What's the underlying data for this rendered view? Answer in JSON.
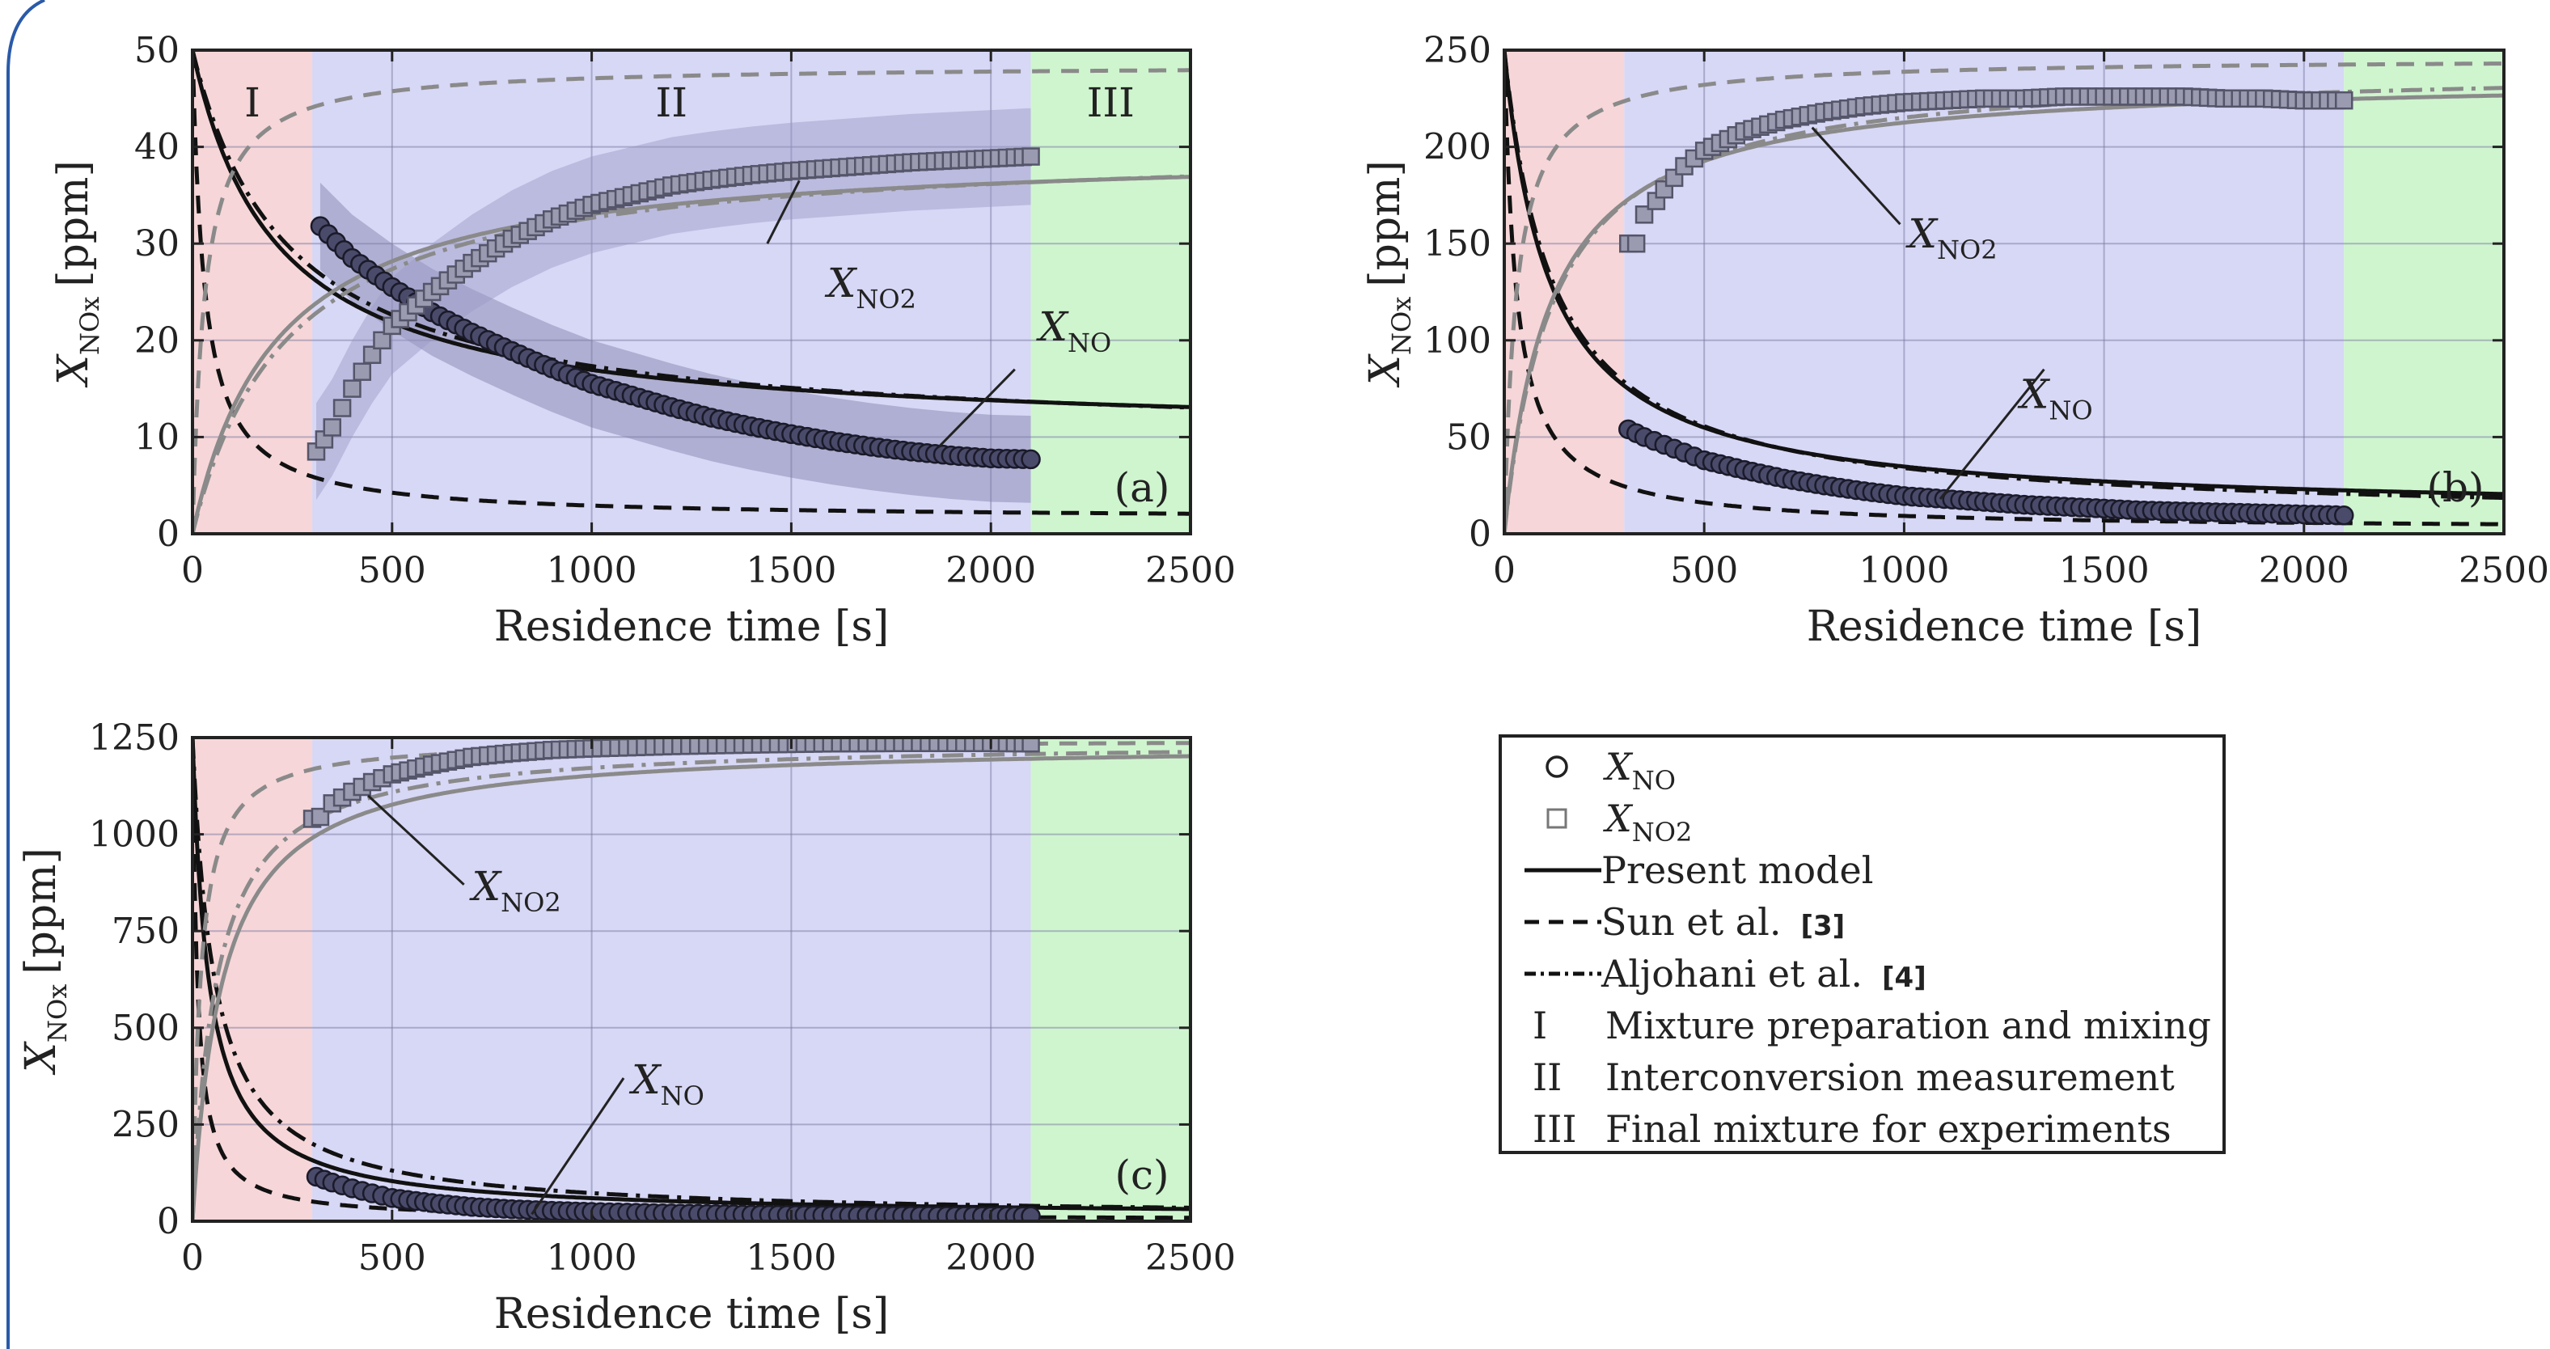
{
  "chart_data": [
    {
      "id": "a",
      "type": "scatter",
      "xlabel": "Residence time [s]",
      "ylabel": "X",
      "ylabel_sub": "NOx",
      "ylabel_unit": "[ppm]",
      "xlim": [
        0,
        2500
      ],
      "ylim": [
        0,
        50
      ],
      "x_ticks": [
        "0",
        "500",
        "1000",
        "1500",
        "2000",
        "2500"
      ],
      "y_ticks": [
        "0",
        "10",
        "20",
        "30",
        "40",
        "50"
      ],
      "panel_label": "(a)",
      "regions": [
        {
          "label": "I",
          "x": [
            0,
            300
          ],
          "color": "#f6d6d8"
        },
        {
          "label": "II",
          "x": [
            300,
            2100
          ],
          "color": "#d7d7f6"
        },
        {
          "label": "III",
          "x": [
            2100,
            2500
          ],
          "color": "#cff5cf"
        }
      ],
      "annotations": [
        {
          "base": "X",
          "sub": "NO2",
          "x": 1590,
          "y": 24.5
        },
        {
          "base": "X",
          "sub": "NO",
          "x": 2120,
          "y": 20
        }
      ],
      "initial_NO": 50,
      "series": [
        {
          "name": "X_NO",
          "marker": "circle",
          "points": [
            [
              320,
              31.8
            ],
            [
              400,
              28.5
            ],
            [
              500,
              25.5
            ],
            [
              600,
              22.9
            ],
            [
              700,
              20.8
            ],
            [
              800,
              18.9
            ],
            [
              900,
              17.1
            ],
            [
              1000,
              15.5
            ],
            [
              1100,
              14.3
            ],
            [
              1200,
              13.1
            ],
            [
              1300,
              12.0
            ],
            [
              1400,
              11.1
            ],
            [
              1500,
              10.3
            ],
            [
              1600,
              9.6
            ],
            [
              1700,
              9.0
            ],
            [
              1800,
              8.5
            ],
            [
              1900,
              8.1
            ],
            [
              2000,
              7.8
            ],
            [
              2100,
              7.7
            ]
          ],
          "band": 4.5
        },
        {
          "name": "X_NO2",
          "marker": "square",
          "points": [
            [
              310,
              8.5
            ],
            [
              350,
              11
            ],
            [
              400,
              15
            ],
            [
              450,
              18.5
            ],
            [
              500,
              21.5
            ],
            [
              600,
              25
            ],
            [
              700,
              28
            ],
            [
              800,
              30.5
            ],
            [
              900,
              32.5
            ],
            [
              1000,
              34
            ],
            [
              1100,
              35
            ],
            [
              1200,
              36
            ],
            [
              1300,
              36.6
            ],
            [
              1400,
              37.1
            ],
            [
              1500,
              37.5
            ],
            [
              1600,
              37.8
            ],
            [
              1700,
              38.1
            ],
            [
              1800,
              38.4
            ],
            [
              1900,
              38.6
            ],
            [
              2000,
              38.8
            ],
            [
              2100,
              39
            ]
          ],
          "band": 5
        },
        {
          "name": "Present model",
          "curve": "NO",
          "tau": 210,
          "plateau": 10
        },
        {
          "name": "Sun et al.",
          "curve": "NO",
          "tau": 30,
          "plateau": 1.5
        },
        {
          "name": "Aljohani et al.",
          "curve": "NO",
          "tau": 240,
          "plateau": 9.5
        },
        {
          "name": "Present model",
          "curve": "NO2",
          "tau": 210,
          "plateau": 40
        },
        {
          "name": "Sun et al.",
          "curve": "NO2",
          "tau": 30,
          "plateau": 48.5
        },
        {
          "name": "Aljohani et al.",
          "curve": "NO2",
          "tau": 240,
          "plateau": 40.5
        }
      ]
    },
    {
      "id": "b",
      "type": "scatter",
      "xlabel": "Residence time [s]",
      "ylabel": "X",
      "ylabel_sub": "NOx",
      "ylabel_unit": "[ppm]",
      "xlim": [
        0,
        2500
      ],
      "ylim": [
        0,
        250
      ],
      "x_ticks": [
        "0",
        "500",
        "1000",
        "1500",
        "2000",
        "2500"
      ],
      "y_ticks": [
        "0",
        "50",
        "100",
        "150",
        "200",
        "250"
      ],
      "panel_label": "(b)",
      "regions": [
        {
          "label": "",
          "x": [
            0,
            300
          ],
          "color": "#f6d6d8"
        },
        {
          "label": "",
          "x": [
            300,
            2100
          ],
          "color": "#d7d7f6"
        },
        {
          "label": "",
          "x": [
            2100,
            2500
          ],
          "color": "#cff5cf"
        }
      ],
      "annotations": [
        {
          "base": "X",
          "sub": "NO2",
          "x": 1010,
          "y": 148
        },
        {
          "base": "X",
          "sub": "NO",
          "x": 1290,
          "y": 65
        }
      ],
      "initial_NO": 250,
      "series": [
        {
          "name": "X_NO",
          "marker": "circle",
          "points": [
            [
              310,
              54
            ],
            [
              350,
              50
            ],
            [
              400,
              46
            ],
            [
              450,
              42
            ],
            [
              500,
              38
            ],
            [
              600,
              33
            ],
            [
              700,
              28.5
            ],
            [
              800,
              25
            ],
            [
              900,
              22
            ],
            [
              1000,
              19.5
            ],
            [
              1100,
              18
            ],
            [
              1200,
              16.5
            ],
            [
              1300,
              15
            ],
            [
              1400,
              14
            ],
            [
              1500,
              13
            ],
            [
              1600,
              12
            ],
            [
              1700,
              11.5
            ],
            [
              1800,
              11
            ],
            [
              1900,
              10.5
            ],
            [
              2000,
              10
            ],
            [
              2100,
              9.5
            ]
          ]
        },
        {
          "name": "X_NO2",
          "marker": "square",
          "points": [
            [
              310,
              150
            ],
            [
              330,
              150
            ],
            [
              350,
              165
            ],
            [
              380,
              172
            ],
            [
              400,
              178
            ],
            [
              450,
              190
            ],
            [
              500,
              198
            ],
            [
              600,
              208
            ],
            [
              700,
              214
            ],
            [
              800,
              218
            ],
            [
              900,
              221
            ],
            [
              1000,
              223
            ],
            [
              1100,
              224
            ],
            [
              1200,
              225
            ],
            [
              1300,
              225
            ],
            [
              1400,
              226
            ],
            [
              1500,
              226
            ],
            [
              1600,
              226
            ],
            [
              1700,
              226
            ],
            [
              1800,
              225
            ],
            [
              1900,
              225
            ],
            [
              2000,
              224
            ],
            [
              2100,
              224
            ]
          ]
        },
        {
          "name": "Present model",
          "curve": "NO",
          "tau": 115,
          "plateau": 10
        },
        {
          "name": "Sun et al.",
          "curve": "NO",
          "tau": 30,
          "plateau": 2
        },
        {
          "name": "Aljohani et al.",
          "curve": "NO",
          "tau": 125,
          "plateau": 7
        },
        {
          "name": "Present model",
          "curve": "NO2",
          "tau": 115,
          "plateau": 237
        },
        {
          "name": "Sun et al.",
          "curve": "NO2",
          "tau": 30,
          "plateau": 246
        },
        {
          "name": "Aljohani et al.",
          "curve": "NO2",
          "tau": 125,
          "plateau": 242
        }
      ]
    },
    {
      "id": "c",
      "type": "scatter",
      "xlabel": "Residence time [s]",
      "ylabel": "X",
      "ylabel_sub": "NOx",
      "ylabel_unit": "[ppm]",
      "xlim": [
        0,
        2500
      ],
      "ylim": [
        0,
        1250
      ],
      "x_ticks": [
        "0",
        "500",
        "1000",
        "1500",
        "2000",
        "2500"
      ],
      "y_ticks": [
        "0",
        "250",
        "500",
        "750",
        "1000",
        "1250"
      ],
      "panel_label": "(c)",
      "regions": [
        {
          "label": "",
          "x": [
            0,
            300
          ],
          "color": "#f6d6d8"
        },
        {
          "label": "",
          "x": [
            300,
            2100
          ],
          "color": "#d7d7f6"
        },
        {
          "label": "",
          "x": [
            2100,
            2500
          ],
          "color": "#cff5cf"
        }
      ],
      "annotations": [
        {
          "base": "X",
          "sub": "NO2",
          "x": 700,
          "y": 830
        },
        {
          "base": "X",
          "sub": "NO",
          "x": 1100,
          "y": 330
        }
      ],
      "initial_NO": 1250,
      "series": [
        {
          "name": "X_NO",
          "marker": "circle",
          "points": [
            [
              310,
              115
            ],
            [
              350,
              100
            ],
            [
              400,
              85
            ],
            [
              450,
              72
            ],
            [
              500,
              60
            ],
            [
              600,
              47
            ],
            [
              700,
              37
            ],
            [
              800,
              31
            ],
            [
              900,
              27
            ],
            [
              1000,
              24
            ],
            [
              1200,
              20
            ],
            [
              1400,
              17
            ],
            [
              1600,
              15
            ],
            [
              1800,
              14
            ],
            [
              2000,
              13
            ],
            [
              2100,
              13
            ]
          ]
        },
        {
          "name": "X_NO2",
          "marker": "square",
          "points": [
            [
              300,
              1040
            ],
            [
              320,
              1045
            ],
            [
              350,
              1080
            ],
            [
              400,
              1110
            ],
            [
              450,
              1135
            ],
            [
              500,
              1155
            ],
            [
              600,
              1180
            ],
            [
              700,
              1200
            ],
            [
              800,
              1210
            ],
            [
              900,
              1218
            ],
            [
              1000,
              1222
            ],
            [
              1200,
              1228
            ],
            [
              1400,
              1232
            ],
            [
              1600,
              1235
            ],
            [
              1800,
              1236
            ],
            [
              2000,
              1236
            ],
            [
              2100,
              1235
            ]
          ]
        },
        {
          "name": "Present model",
          "curve": "NO",
          "tau": 40,
          "plateau": 12
        },
        {
          "name": "Sun et al.",
          "curve": "NO",
          "tau": 12,
          "plateau": 3
        },
        {
          "name": "Aljohani et al.",
          "curve": "NO",
          "tau": 55,
          "plateau": 8
        },
        {
          "name": "Present model",
          "curve": "NO2",
          "tau": 75,
          "plateau": 1238
        },
        {
          "name": "Sun et al.",
          "curve": "NO2",
          "tau": 20,
          "plateau": 1246
        },
        {
          "name": "Aljohani et al.",
          "curve": "NO2",
          "tau": 60,
          "plateau": 1242
        }
      ]
    }
  ],
  "legend": {
    "items": [
      {
        "symbol": "circle",
        "base": "X",
        "sub": "NO",
        "label": "",
        "ref": ""
      },
      {
        "symbol": "square",
        "base": "X",
        "sub": "NO2",
        "label": "",
        "ref": ""
      },
      {
        "symbol": "solid",
        "base": "",
        "sub": "",
        "label": "Present model",
        "ref": ""
      },
      {
        "symbol": "dashed",
        "base": "",
        "sub": "",
        "label": "Sun et al.",
        "ref": "[3]"
      },
      {
        "symbol": "dashdot",
        "base": "",
        "sub": "",
        "label": "Aljohani et al.",
        "ref": "[4]"
      },
      {
        "symbol": "roman",
        "roman": "I",
        "base": "",
        "sub": "",
        "label": "Mixture preparation and mixing",
        "ref": ""
      },
      {
        "symbol": "roman",
        "roman": "II",
        "base": "",
        "sub": "",
        "label": "Interconversion measurement",
        "ref": ""
      },
      {
        "symbol": "roman",
        "roman": "III",
        "base": "",
        "sub": "",
        "label": "Final mixture for experiments",
        "ref": ""
      }
    ]
  },
  "colors": {
    "no_marker_fill": "#4a4a6a",
    "no_marker_stroke": "#1a1a2a",
    "no2_marker_fill": "#9a9ab0",
    "no2_marker_stroke": "#55556a",
    "model_no": "#111111",
    "model_no2": "#8a8a8a",
    "band_no": "#7e7ea8",
    "band_no2": "#9a9ac6",
    "frame": "#222222",
    "grid": "#7a7aa0",
    "page_border": "#2a5aa8"
  }
}
